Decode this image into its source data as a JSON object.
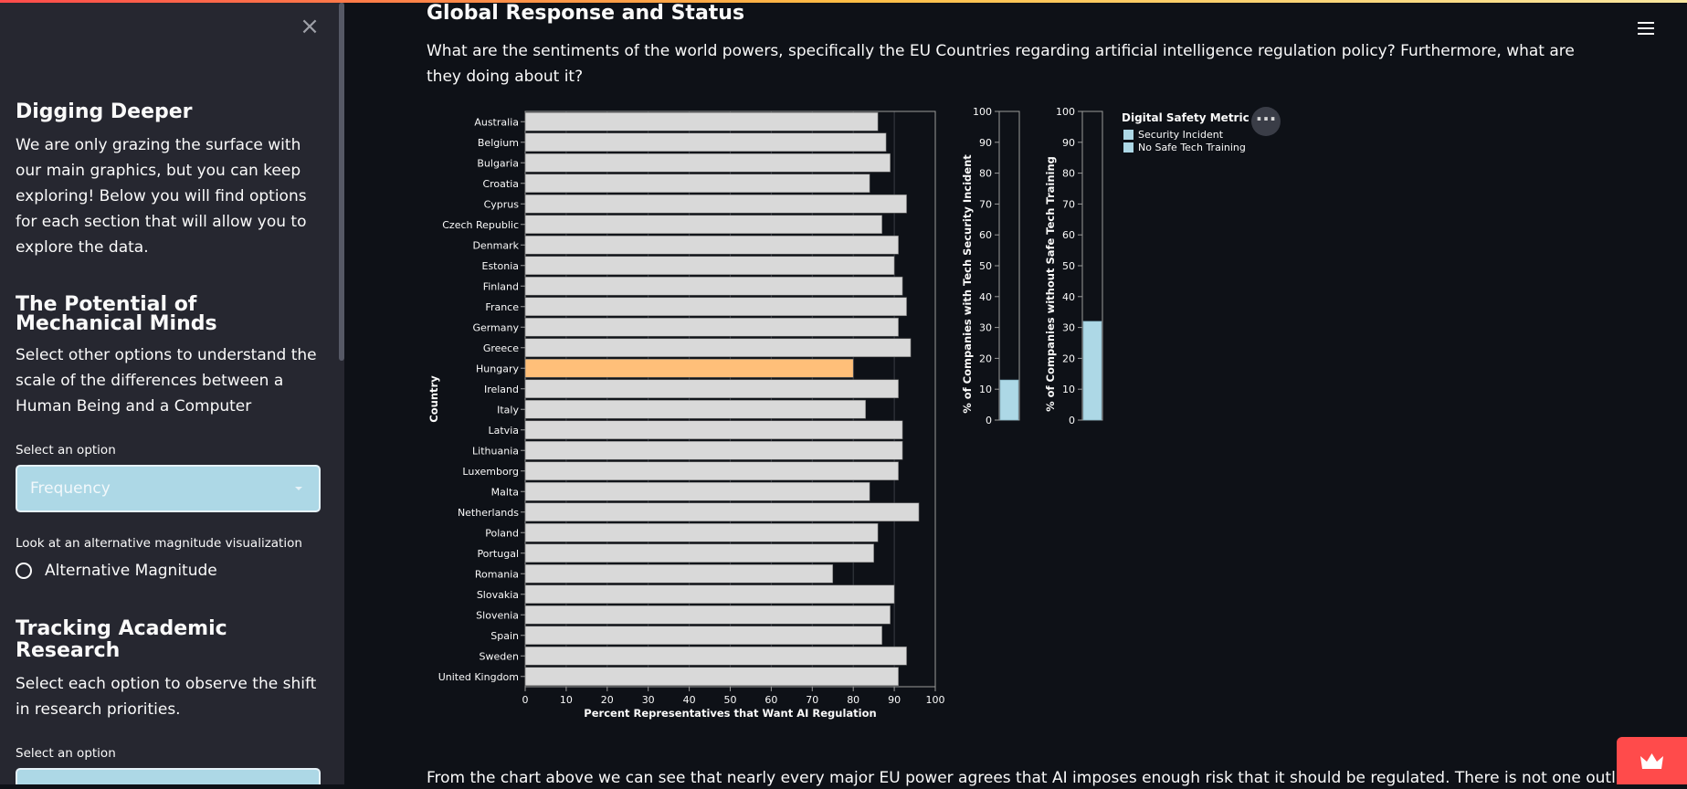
{
  "sidebar": {
    "close_glyph": "×",
    "digging": {
      "heading": "Digging Deeper",
      "paragraph": "We are only grazing the surface with our main graphics, but you can keep exploring! Below you will find options for each section that will allow you to explore the data."
    },
    "mechanical": {
      "heading": "The Potential of Mechanical Minds",
      "paragraph": "Select other options to understand the scale of the differences between a Human Being and a Computer",
      "select_label": "Select an option",
      "select_value": "Frequency",
      "alt_label": "Look at an alternative magnitude visualization",
      "radio_label": "Alternative Magnitude"
    },
    "academic": {
      "heading": "Tracking Academic Research",
      "paragraph": "Select each option to observe the shift in research priorities.",
      "select_label": "Select an option"
    }
  },
  "main": {
    "title": "Global Response and Status",
    "paragraph": "What are the sentiments of the world powers, specifically the EU Countries regarding artificial intelligence regulation policy? Furthermore, what are they doing about it?",
    "bottom_text": "From the chart above we can see that nearly every major EU power agrees that AI imposes enough risk that it should be regulated. There is not one outlier"
  },
  "icons": {
    "menu": "hamburger-icon",
    "more": "ellipsis-icon",
    "close": "close-icon",
    "deploy": "crown-icon"
  },
  "colors": {
    "bar": "#d9d9d9",
    "highlight": "#ffbf79",
    "metric": "#add8e6",
    "sidebar": "#262730",
    "background": "#0e1117",
    "accent": "#ff4b4b"
  },
  "chart_data": [
    {
      "type": "bar",
      "orientation": "horizontal",
      "categories": [
        "Australia",
        "Belgium",
        "Bulgaria",
        "Croatia",
        "Cyprus",
        "Czech Republic",
        "Denmark",
        "Estonia",
        "Finland",
        "France",
        "Germany",
        "Greece",
        "Hungary",
        "Ireland",
        "Italy",
        "Latvia",
        "Lithuania",
        "Luxemborg",
        "Malta",
        "Netherlands",
        "Poland",
        "Portugal",
        "Romania",
        "Slovakia",
        "Slovenia",
        "Spain",
        "Sweden",
        "United Kingdom"
      ],
      "values": [
        86,
        88,
        89,
        84,
        93,
        87,
        91,
        90,
        92,
        93,
        91,
        94,
        80,
        91,
        83,
        92,
        92,
        91,
        84,
        96,
        86,
        85,
        75,
        90,
        89,
        87,
        93,
        91
      ],
      "highlighted": "Hungary",
      "xlabel": "Percent Representatives that Want AI Regulation",
      "ylabel": "Country",
      "xlim": [
        0,
        100
      ],
      "xticks": [
        "0",
        "10",
        "20",
        "30",
        "40",
        "50",
        "60",
        "70",
        "80",
        "90",
        "100"
      ],
      "grid": true
    },
    {
      "type": "bar",
      "ylabel": "% of Companies with Tech Security Incident",
      "ylim": [
        0,
        100
      ],
      "yticks": [
        "0",
        "10",
        "20",
        "30",
        "40",
        "50",
        "60",
        "70",
        "80",
        "90",
        "100"
      ],
      "values": [
        13
      ]
    },
    {
      "type": "bar",
      "ylabel": "% of Companies without Safe Tech Training",
      "ylim": [
        0,
        100
      ],
      "yticks": [
        "0",
        "10",
        "20",
        "30",
        "40",
        "50",
        "60",
        "70",
        "80",
        "90",
        "100"
      ],
      "values": [
        32
      ]
    }
  ],
  "legend": {
    "title": "Digital Safety Metric",
    "entries": [
      "Security Incident",
      "No Safe Tech Training"
    ]
  }
}
